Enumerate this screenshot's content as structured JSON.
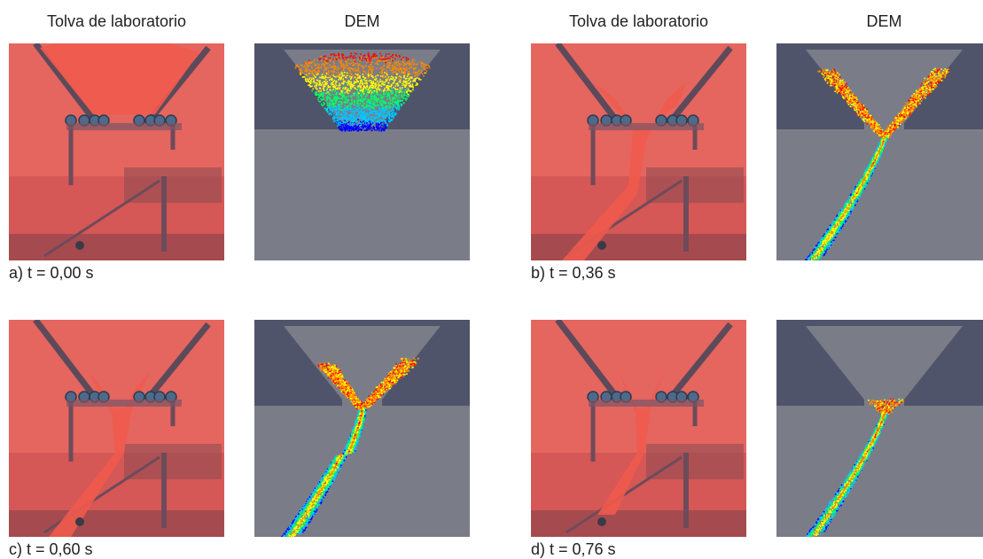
{
  "headers": {
    "lab": "Tolva de laboratorio",
    "dem": "DEM"
  },
  "panels": [
    {
      "id": "a",
      "caption": "a) t = 0,00 s",
      "stage": 0
    },
    {
      "id": "b",
      "caption": "b) t = 0,36 s",
      "stage": 1
    },
    {
      "id": "c",
      "caption": "c) t = 0,60 s",
      "stage": 2
    },
    {
      "id": "d",
      "caption": "d) t = 0,76 s",
      "stage": 3
    }
  ],
  "colors": {
    "photo_bg": "#e5655f",
    "photo_dark": "#7a3f46",
    "sand": "#ef5a4c",
    "dem_hopper": "#50546a",
    "dem_floor": "#7a7d88",
    "dem_wall_inner": "#7a7d88",
    "scale": [
      "#0000ff",
      "#00c8ff",
      "#00ff66",
      "#ffff00",
      "#ff8800",
      "#ff0000"
    ]
  }
}
